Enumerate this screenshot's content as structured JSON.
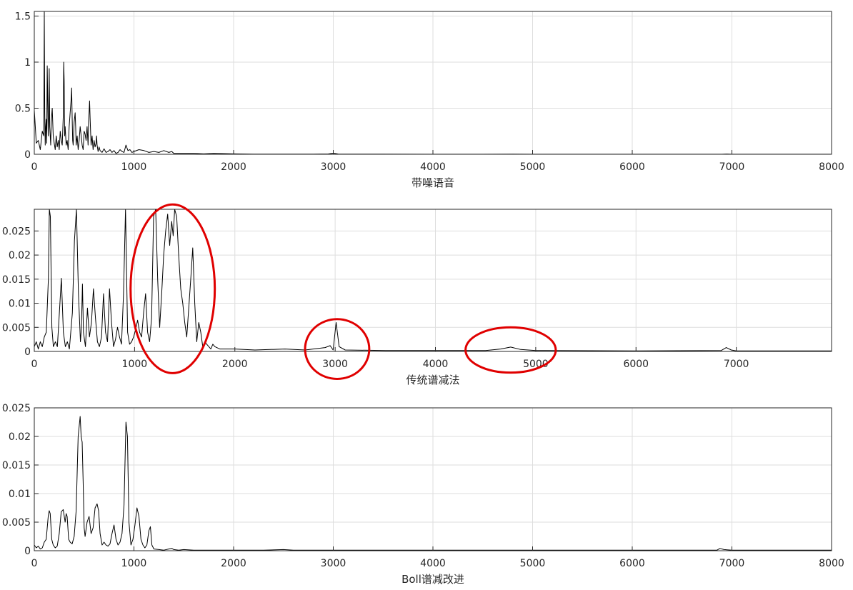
{
  "chart_data": [
    {
      "type": "line",
      "xlabel": "带噪语音",
      "ylabel": "",
      "xlim": [
        0,
        8000
      ],
      "ylim": [
        0,
        1.55
      ],
      "xticks": [
        0,
        1000,
        2000,
        3000,
        4000,
        5000,
        6000,
        7000,
        8000
      ],
      "yticks": [
        0,
        0.5,
        1,
        1.5
      ],
      "ytick_labels": [
        "0",
        "0.5",
        "1",
        "1.5"
      ],
      "grid": true,
      "line_color": "#000000",
      "series": [
        {
          "x": [
            0,
            20,
            40,
            60,
            80,
            95,
            100,
            105,
            110,
            115,
            120,
            125,
            130,
            140,
            145,
            150,
            155,
            160,
            165,
            170,
            180,
            190,
            200,
            210,
            220,
            230,
            240,
            250,
            260,
            270,
            280,
            290,
            295,
            300,
            305,
            310,
            320,
            330,
            340,
            350,
            360,
            370,
            375,
            380,
            385,
            390,
            400,
            410,
            415,
            420,
            430,
            440,
            450,
            460,
            470,
            480,
            490,
            500,
            510,
            520,
            530,
            540,
            545,
            550,
            555,
            560,
            570,
            580,
            590,
            600,
            610,
            620,
            625,
            630,
            640,
            650,
            660,
            680,
            700,
            720,
            740,
            760,
            780,
            800,
            820,
            840,
            860,
            880,
            900,
            920,
            940,
            960,
            980,
            1000,
            1050,
            1100,
            1150,
            1200,
            1250,
            1300,
            1350,
            1380,
            1400,
            1500,
            1600,
            1700,
            1800,
            2000,
            2200,
            2500,
            2800,
            2950,
            3000,
            3050,
            3200,
            3500,
            4000,
            4500,
            4800,
            5000,
            6000,
            6900,
            6950,
            7000,
            8000
          ],
          "y": [
            0.48,
            0.12,
            0.15,
            0.05,
            0.25,
            0.2,
            1.55,
            0.45,
            0.1,
            0.3,
            0.38,
            0.12,
            0.96,
            0.2,
            0.4,
            0.93,
            0.3,
            0.2,
            0.1,
            0.35,
            0.5,
            0.2,
            0.12,
            0.05,
            0.2,
            0.08,
            0.15,
            0.05,
            0.25,
            0.15,
            0.1,
            0.4,
            1.0,
            0.8,
            0.2,
            0.3,
            0.1,
            0.15,
            0.05,
            0.3,
            0.45,
            0.6,
            0.72,
            0.4,
            0.15,
            0.1,
            0.35,
            0.45,
            0.3,
            0.1,
            0.2,
            0.05,
            0.15,
            0.3,
            0.2,
            0.1,
            0.05,
            0.25,
            0.22,
            0.15,
            0.3,
            0.1,
            0.35,
            0.45,
            0.58,
            0.4,
            0.1,
            0.2,
            0.05,
            0.15,
            0.08,
            0.12,
            0.2,
            0.1,
            0.03,
            0.08,
            0.04,
            0.02,
            0.06,
            0.02,
            0.03,
            0.05,
            0.02,
            0.04,
            0.01,
            0.02,
            0.05,
            0.03,
            0.02,
            0.1,
            0.04,
            0.05,
            0.02,
            0.03,
            0.05,
            0.04,
            0.02,
            0.03,
            0.02,
            0.04,
            0.02,
            0.03,
            0.01,
            0.01,
            0.01,
            0.005,
            0.01,
            0.005,
            0.002,
            0.002,
            0.002,
            0.004,
            0.012,
            0.003,
            0.002,
            0.002,
            0.001,
            0.001,
            0.002,
            0.001,
            0.001,
            0.001,
            0.003,
            0.001,
            0.001
          ]
        }
      ]
    },
    {
      "type": "line",
      "xlabel": "传统谱减法",
      "ylabel": "",
      "xlim": [
        0,
        7950
      ],
      "ylim": [
        0,
        0.0295
      ],
      "xticks": [
        0,
        1000,
        2000,
        3000,
        4000,
        5000,
        6000,
        7000
      ],
      "yticks": [
        0,
        0.005,
        0.01,
        0.015,
        0.02,
        0.025
      ],
      "ytick_labels": [
        "0",
        "0.005",
        "0.01",
        "0.015",
        "0.02",
        "0.025"
      ],
      "grid": true,
      "line_color": "#000000",
      "annotations": {
        "color": "#e00000",
        "ellipses": [
          {
            "cx": 1380,
            "cy": 0.013,
            "rx": 420,
            "ry": 0.0175
          },
          {
            "cx": 3020,
            "cy": 0.0005,
            "rx": 320,
            "ry": 0.0062
          },
          {
            "cx": 4750,
            "cy": 0.0003,
            "rx": 450,
            "ry": 0.0047
          }
        ]
      },
      "series": [
        {
          "x": [
            0,
            20,
            40,
            60,
            80,
            100,
            120,
            140,
            150,
            160,
            175,
            190,
            210,
            230,
            250,
            270,
            290,
            310,
            330,
            350,
            380,
            400,
            420,
            440,
            460,
            470,
            480,
            490,
            510,
            530,
            550,
            570,
            590,
            610,
            630,
            650,
            670,
            690,
            710,
            730,
            750,
            770,
            790,
            810,
            830,
            850,
            870,
            890,
            910,
            930,
            950,
            970,
            990,
            1010,
            1030,
            1050,
            1070,
            1090,
            1110,
            1130,
            1150,
            1170,
            1190,
            1210,
            1230,
            1250,
            1270,
            1290,
            1310,
            1330,
            1350,
            1370,
            1385,
            1400,
            1420,
            1440,
            1460,
            1480,
            1500,
            1520,
            1540,
            1560,
            1580,
            1600,
            1620,
            1640,
            1660,
            1680,
            1700,
            1720,
            1740,
            1760,
            1780,
            1800,
            1850,
            1900,
            2000,
            2200,
            2500,
            2700,
            2900,
            2950,
            2980,
            3010,
            3040,
            3100,
            3500,
            4000,
            4500,
            4650,
            4750,
            4850,
            5000,
            6000,
            6850,
            6900,
            6950,
            7000,
            7500,
            7950
          ],
          "y": [
            0.001,
            0.002,
            0.0005,
            0.002,
            0.001,
            0.003,
            0.004,
            0.015,
            0.03,
            0.028,
            0.005,
            0.001,
            0.002,
            0.001,
            0.008,
            0.0152,
            0.004,
            0.001,
            0.002,
            0.0005,
            0.008,
            0.023,
            0.03,
            0.012,
            0.002,
            0.005,
            0.014,
            0.004,
            0.001,
            0.009,
            0.003,
            0.006,
            0.013,
            0.007,
            0.002,
            0.001,
            0.003,
            0.012,
            0.004,
            0.002,
            0.013,
            0.006,
            0.001,
            0.0025,
            0.005,
            0.003,
            0.0015,
            0.012,
            0.03,
            0.004,
            0.0015,
            0.002,
            0.003,
            0.0045,
            0.0065,
            0.004,
            0.003,
            0.008,
            0.012,
            0.004,
            0.002,
            0.007,
            0.028,
            0.03,
            0.015,
            0.005,
            0.012,
            0.02,
            0.025,
            0.0285,
            0.022,
            0.027,
            0.024,
            0.03,
            0.028,
            0.02,
            0.013,
            0.01,
            0.006,
            0.003,
            0.009,
            0.015,
            0.0215,
            0.01,
            0.002,
            0.006,
            0.004,
            0.001,
            0.002,
            0.0015,
            0.001,
            0.0005,
            0.0015,
            0.001,
            0.0005,
            0.0005,
            0.0005,
            0.0003,
            0.0005,
            0.0003,
            0.0008,
            0.0012,
            0.0003,
            0.006,
            0.001,
            0.0003,
            0.0002,
            0.0002,
            0.0002,
            0.0005,
            0.0009,
            0.0004,
            0.0002,
            0.0001,
            0.0002,
            0.0008,
            0.0003,
            0.0001,
            0.0001,
            0.0001
          ]
        }
      ]
    },
    {
      "type": "line",
      "xlabel": "Boll谱减改进",
      "ylabel": "",
      "xlim": [
        0,
        8000
      ],
      "ylim": [
        0,
        0.025
      ],
      "xticks": [
        0,
        1000,
        2000,
        3000,
        4000,
        5000,
        6000,
        7000,
        8000
      ],
      "yticks": [
        0,
        0.005,
        0.01,
        0.015,
        0.02,
        0.025
      ],
      "ytick_labels": [
        "0",
        "0.005",
        "0.01",
        "0.015",
        "0.02",
        "0.025"
      ],
      "grid": true,
      "line_color": "#000000",
      "series": [
        {
          "x": [
            0,
            20,
            40,
            60,
            80,
            100,
            120,
            140,
            150,
            160,
            175,
            190,
            210,
            230,
            250,
            270,
            290,
            310,
            320,
            330,
            345,
            360,
            380,
            400,
            420,
            440,
            460,
            470,
            480,
            490,
            500,
            510,
            530,
            550,
            570,
            590,
            610,
            630,
            645,
            660,
            680,
            700,
            720,
            740,
            760,
            780,
            800,
            820,
            840,
            860,
            880,
            900,
            910,
            920,
            935,
            950,
            970,
            990,
            1010,
            1030,
            1050,
            1070,
            1090,
            1110,
            1130,
            1150,
            1165,
            1180,
            1200,
            1250,
            1300,
            1350,
            1380,
            1400,
            1450,
            1500,
            1600,
            1800,
            2000,
            2300,
            2500,
            2600,
            3000,
            3500,
            4000,
            5000,
            6000,
            6850,
            6880,
            6920,
            7000,
            8000
          ],
          "y": [
            0.001,
            0.0005,
            0.0008,
            0.0003,
            0.0005,
            0.0015,
            0.002,
            0.006,
            0.007,
            0.0065,
            0.002,
            0.001,
            0.0005,
            0.0008,
            0.003,
            0.0068,
            0.0072,
            0.005,
            0.0065,
            0.006,
            0.002,
            0.0015,
            0.0012,
            0.0025,
            0.007,
            0.02,
            0.0235,
            0.02,
            0.019,
            0.012,
            0.004,
            0.0025,
            0.005,
            0.006,
            0.003,
            0.004,
            0.0075,
            0.0082,
            0.007,
            0.003,
            0.001,
            0.0015,
            0.001,
            0.0008,
            0.0012,
            0.003,
            0.0045,
            0.002,
            0.001,
            0.0015,
            0.003,
            0.008,
            0.015,
            0.0225,
            0.02,
            0.005,
            0.001,
            0.002,
            0.0045,
            0.0075,
            0.006,
            0.002,
            0.001,
            0.0005,
            0.001,
            0.0035,
            0.0042,
            0.001,
            0.0003,
            0.0002,
            0.0001,
            0.0003,
            0.0004,
            0.0002,
            0.0001,
            0.0002,
            0.0001,
            0.0001,
            0.0001,
            0.0001,
            0.0002,
            0.0001,
            0.0001,
            0.0001,
            0.0001,
            0.0001,
            0.0001,
            0.0001,
            0.0004,
            0.0002,
            0.0001,
            0.0001
          ]
        }
      ]
    }
  ]
}
